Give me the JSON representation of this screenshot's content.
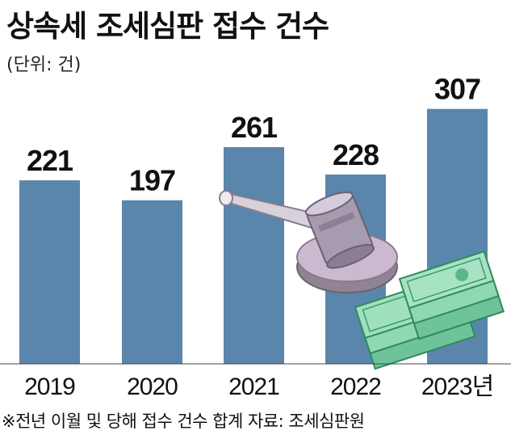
{
  "title": "상속세 조세심판 접수 건수",
  "unit": "(단위: 건)",
  "footnote": "※전년 이월 및 당해 접수 건수 합계  자료: 조세심판원",
  "bar_color": "#5a86ab",
  "chart_data": {
    "type": "bar",
    "title": "상속세 조세심판 접수 건수",
    "unit": "(단위: 건)",
    "categories": [
      "2019",
      "2020",
      "2021",
      "2022",
      "2023년"
    ],
    "values": [
      221,
      197,
      261,
      228,
      307
    ],
    "xlabel": "",
    "ylabel": "",
    "ylim": [
      0,
      370
    ],
    "grid": false,
    "legend": "none"
  }
}
